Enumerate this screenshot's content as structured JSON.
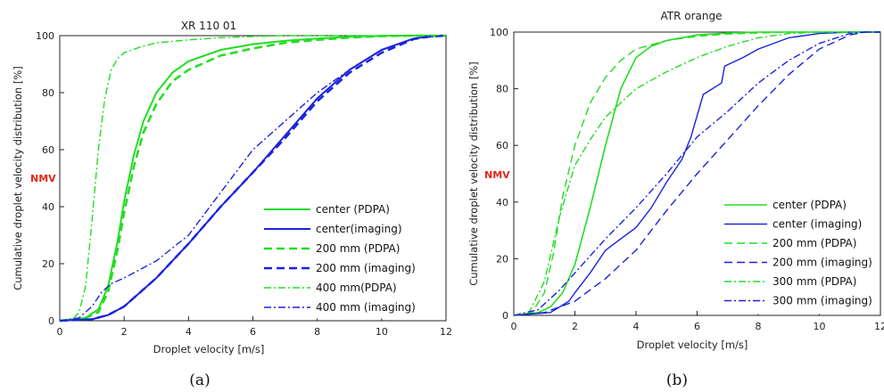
{
  "chart_data": [
    {
      "type": "line",
      "title": "XR 110 01",
      "xlabel": "Droplet velocity [m/s]",
      "ylabel": "Cumulative droplet velocity distribution [%]",
      "annotation": "NMV",
      "caption": "(a)",
      "xlim": [
        0,
        12
      ],
      "ylim": [
        0,
        100
      ],
      "xticks": [
        "0",
        "2",
        "4",
        "6",
        "8",
        "10",
        "12"
      ],
      "yticks": [
        "0",
        "20",
        "40",
        "60",
        "80",
        "100"
      ],
      "legend_position": "lower-right",
      "series": [
        {
          "name": "center (PDPA)",
          "color": "#22dd22",
          "style": "solid",
          "width": 2,
          "x": [
            0,
            0.8,
            1.2,
            1.5,
            1.8,
            2.0,
            2.3,
            2.6,
            3.0,
            3.5,
            4.0,
            5.0,
            6.0,
            7.0,
            8.0,
            9.0,
            10.0,
            11.0,
            12.0
          ],
          "y": [
            0,
            1,
            4,
            12,
            28,
            42,
            58,
            70,
            80,
            87,
            91,
            95,
            97,
            98.2,
            99,
            99.6,
            99.9,
            100,
            100
          ]
        },
        {
          "name": "center(imaging)",
          "color": "#1a22dd",
          "style": "solid",
          "width": 2,
          "x": [
            0,
            1.0,
            1.5,
            2.0,
            3.0,
            4.0,
            5.0,
            6.0,
            7.0,
            8.0,
            9.0,
            10.0,
            11.0,
            11.5,
            12.0
          ],
          "y": [
            0,
            0.5,
            2,
            5,
            15,
            27,
            40,
            52,
            65,
            78,
            88,
            95,
            99,
            99.8,
            100
          ]
        },
        {
          "name": "200 mm (PDPA)",
          "color": "#22dd22",
          "style": "dash",
          "width": 2.5,
          "x": [
            0,
            0.8,
            1.2,
            1.5,
            1.8,
            2.0,
            2.3,
            2.6,
            3.0,
            3.5,
            4.0,
            5.0,
            6.0,
            7.0,
            8.0,
            9.0,
            10.0,
            11.0,
            12.0
          ],
          "y": [
            0,
            1,
            3,
            10,
            25,
            38,
            54,
            66,
            76,
            84,
            88,
            93,
            95.5,
            97.5,
            98.5,
            99.3,
            99.8,
            100,
            100
          ]
        },
        {
          "name": "200 mm (imaging)",
          "color": "#1a22dd",
          "style": "dash",
          "width": 2.5,
          "x": [
            0,
            1.0,
            1.5,
            2.0,
            3.0,
            4.0,
            5.0,
            6.0,
            7.0,
            8.0,
            9.0,
            10.0,
            11.0,
            11.5,
            12.0
          ],
          "y": [
            0,
            0.5,
            2,
            5,
            15,
            27,
            40,
            52,
            64,
            77,
            87,
            94,
            98.8,
            99.7,
            100
          ]
        },
        {
          "name": "400 mm(PDPA)",
          "color": "#22dd22",
          "style": "dashdot",
          "width": 1.4,
          "x": [
            0,
            0.4,
            0.6,
            0.8,
            1.0,
            1.2,
            1.4,
            1.6,
            1.8,
            2.0,
            2.5,
            3.0,
            4.0,
            5.0,
            6.0,
            7.0,
            8.0,
            10.0,
            12.0
          ],
          "y": [
            0,
            0.5,
            3,
            12,
            35,
            60,
            78,
            88,
            92,
            94,
            96,
            97.5,
            98.5,
            99.3,
            99.7,
            100,
            100,
            100,
            100
          ]
        },
        {
          "name": "400 mm (imaging)",
          "color": "#1a22dd",
          "style": "dashdot",
          "width": 1.4,
          "x": [
            0,
            0.6,
            1.0,
            1.3,
            1.6,
            2.0,
            3.0,
            4.0,
            5.0,
            6.0,
            7.0,
            8.0,
            9.0,
            10.0,
            11.0,
            12.0
          ],
          "y": [
            0,
            1,
            5,
            10,
            13,
            15,
            21,
            30,
            45,
            60,
            70,
            80,
            88,
            95,
            99,
            100
          ]
        }
      ]
    },
    {
      "type": "line",
      "title": "ATR orange",
      "xlabel": "Droplet velocity [m/s]",
      "ylabel": "Cumulative droplet velocity distribution [%]",
      "annotation": "NMV",
      "caption": "(b)",
      "xlim": [
        0,
        12
      ],
      "ylim": [
        0,
        100
      ],
      "xticks": [
        "0",
        "2",
        "4",
        "6",
        "8",
        "10",
        "12"
      ],
      "yticks": [
        "0",
        "20",
        "40",
        "60",
        "80",
        "100"
      ],
      "legend_position": "lower-right",
      "series": [
        {
          "name": "center (PDPA)",
          "color": "#22dd22",
          "style": "solid",
          "width": 1.6,
          "x": [
            0,
            0.8,
            1.2,
            1.6,
            2.0,
            2.5,
            3.0,
            3.5,
            4.0,
            4.5,
            5.0,
            6.0,
            7.0,
            8.0,
            10.0,
            12.0
          ],
          "y": [
            0,
            1,
            3,
            8,
            18,
            38,
            60,
            80,
            91,
            95,
            97,
            99,
            99.7,
            100,
            100,
            100
          ]
        },
        {
          "name": "center (imaging)",
          "color": "#1a22dd",
          "style": "solid",
          "width": 1.4,
          "x": [
            0,
            1.2,
            1.5,
            1.8,
            2.0,
            2.5,
            3.0,
            3.5,
            4.0,
            4.5,
            5.0,
            5.5,
            5.8,
            6.2,
            6.8,
            6.9,
            7.5,
            8.0,
            9.0,
            10.0,
            11.0,
            11.5,
            12.0
          ],
          "y": [
            0,
            1,
            3,
            5,
            8,
            15,
            23,
            27,
            31,
            38,
            47,
            55,
            63,
            78,
            82,
            88,
            91,
            94,
            98,
            99.5,
            100,
            100,
            100
          ]
        },
        {
          "name": "200 mm (PDPA)",
          "color": "#22dd22",
          "style": "dash",
          "width": 1.4,
          "x": [
            0,
            0.6,
            1.0,
            1.3,
            1.6,
            2.0,
            2.5,
            3.0,
            3.5,
            4.0,
            5.0,
            6.0,
            7.0,
            8.0,
            9.0,
            10.0,
            12.0
          ],
          "y": [
            0,
            1,
            8,
            22,
            42,
            60,
            75,
            84,
            90,
            94,
            97,
            98.5,
            99.3,
            99.7,
            100,
            100,
            100
          ]
        },
        {
          "name": "200 mm (imaging)",
          "color": "#1a22dd",
          "style": "dash",
          "width": 1.4,
          "x": [
            0,
            1.0,
            2.0,
            3.0,
            4.0,
            5.0,
            6.0,
            7.0,
            8.0,
            9.0,
            10.0,
            11.0,
            11.5,
            12.0
          ],
          "y": [
            0,
            1,
            5,
            13,
            23,
            37,
            50,
            62,
            74,
            85,
            94,
            99,
            100,
            100
          ]
        },
        {
          "name": "300 mm (PDPA)",
          "color": "#22dd22",
          "style": "dashdot",
          "width": 1.4,
          "x": [
            0,
            0.5,
            1.0,
            1.5,
            2.0,
            2.5,
            3.0,
            4.0,
            5.0,
            6.0,
            7.0,
            8.0,
            9.0,
            10.0,
            12.0
          ],
          "y": [
            0,
            1,
            12,
            35,
            53,
            62,
            70,
            80,
            86,
            91,
            95,
            98,
            99.5,
            100,
            100
          ]
        },
        {
          "name": "300 mm (imaging)",
          "color": "#1a22dd",
          "style": "dashdot",
          "width": 1.4,
          "x": [
            0,
            0.8,
            1.5,
            2.0,
            3.0,
            4.0,
            5.0,
            6.0,
            7.0,
            8.0,
            9.0,
            10.0,
            11.0,
            11.5,
            12.0
          ],
          "y": [
            0,
            2,
            9,
            15,
            27,
            38,
            50,
            63,
            72,
            82,
            90,
            96,
            99.5,
            100,
            100
          ]
        }
      ]
    }
  ]
}
